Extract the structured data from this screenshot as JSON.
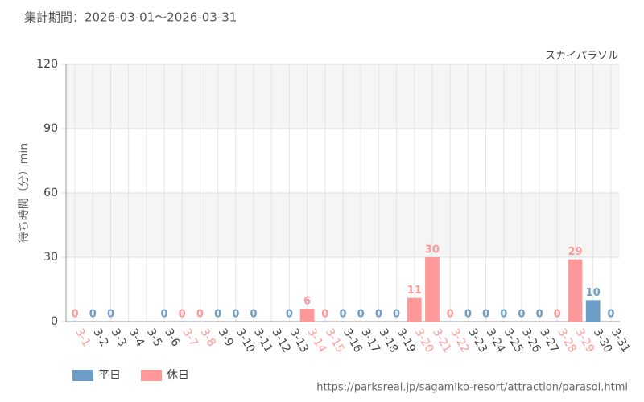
{
  "chart_data": {
    "type": "bar",
    "title": "集計期間：2026-03-01〜2026-03-31",
    "subtitle": "スカイパラソル",
    "y_label": "待ち時間（分）min",
    "source": "https://parksreal.jp/sagamiko-resort/attraction/parasol.html",
    "categories": [
      "3-1",
      "3-2",
      "3-3",
      "3-4",
      "3-5",
      "3-6",
      "3-7",
      "3-8",
      "3-9",
      "3-10",
      "3-11",
      "3-12",
      "3-13",
      "3-14",
      "3-15",
      "3-16",
      "3-17",
      "3-18",
      "3-19",
      "3-20",
      "3-21",
      "3-22",
      "3-23",
      "3-24",
      "3-25",
      "3-26",
      "3-27",
      "3-28",
      "3-29",
      "3-30",
      "3-31"
    ],
    "series": [
      {
        "name": "平日",
        "color": "#6b9dc6",
        "values": [
          null,
          0,
          0,
          null,
          null,
          0,
          null,
          null,
          0,
          0,
          0,
          null,
          0,
          null,
          null,
          0,
          0,
          0,
          0,
          null,
          null,
          null,
          0,
          0,
          0,
          0,
          0,
          null,
          null,
          10,
          0
        ]
      },
      {
        "name": "休日",
        "color": "#ff9999",
        "values": [
          0,
          null,
          null,
          null,
          null,
          null,
          0,
          0,
          null,
          null,
          null,
          null,
          null,
          6,
          0,
          null,
          null,
          null,
          null,
          11,
          30,
          0,
          null,
          null,
          null,
          null,
          null,
          0,
          29,
          null,
          null
        ]
      }
    ],
    "ylim": [
      0,
      120
    ],
    "yticks": [
      0,
      30,
      60,
      90,
      120
    ],
    "grid": true,
    "legend": "bottom-left"
  }
}
